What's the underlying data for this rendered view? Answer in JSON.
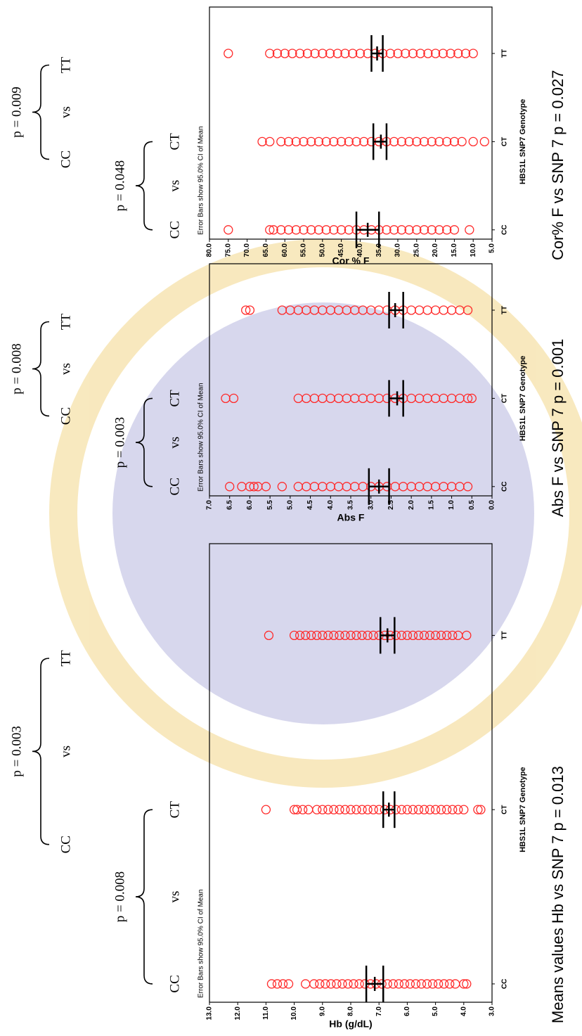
{
  "chart_data": [
    {
      "type": "scatter",
      "y_label": "Hb (g/dL)",
      "x_label": "HBS1L SNP7 Genotype",
      "subtitle": "Error Bars show 95.0% CI of Mean",
      "caption": "Means values  Hb vs SNP 7  p = 0.013",
      "color": "#ff2a2a",
      "categories": [
        "CC",
        "CT",
        "TT"
      ],
      "points": [
        [
          10.8,
          10.6,
          10.4,
          10.2,
          9.6,
          9.3,
          9.1,
          8.9,
          8.7,
          8.5,
          8.3,
          8.1,
          7.9,
          7.7,
          7.5,
          7.3,
          7.1,
          6.9,
          6.7,
          6.5,
          6.3,
          6.1,
          5.9,
          5.7,
          5.5,
          5.3,
          5.1,
          4.9,
          4.7,
          4.5,
          4.3,
          4.0,
          3.9
        ],
        [
          11.0,
          10.0,
          9.9,
          9.7,
          9.5,
          9.2,
          9.0,
          8.8,
          8.6,
          8.4,
          8.2,
          8.0,
          7.8,
          7.6,
          7.4,
          7.2,
          7.0,
          6.8,
          6.6,
          6.4,
          6.2,
          6.0,
          5.8,
          5.6,
          5.4,
          5.2,
          5.0,
          4.8,
          4.6,
          4.4,
          4.2,
          4.0,
          3.5,
          3.4
        ],
        [
          10.9,
          10.0,
          9.8,
          9.6,
          9.4,
          9.2,
          9.0,
          8.8,
          8.6,
          8.4,
          8.2,
          8.0,
          7.8,
          7.6,
          7.4,
          7.2,
          7.0,
          6.8,
          6.6,
          6.4,
          6.2,
          6.0,
          5.8,
          5.6,
          5.4,
          5.2,
          5.0,
          4.8,
          4.6,
          4.4,
          4.2,
          3.9
        ]
      ],
      "means": [
        7.15,
        6.65,
        6.7
      ],
      "ci_low": [
        6.85,
        6.45,
        6.45
      ],
      "ci_high": [
        7.45,
        6.85,
        6.95
      ],
      "ylim": [
        3.0,
        13.0
      ],
      "yticks": [
        {
          "value": 3,
          "label": "3.0"
        },
        {
          "value": 4,
          "label": "4.0"
        },
        {
          "value": 5,
          "label": "5.0"
        },
        {
          "value": 6,
          "label": "6.0"
        },
        {
          "value": 7,
          "label": "7.0"
        },
        {
          "value": 8,
          "label": "8.0"
        },
        {
          "value": 9,
          "label": "9.0"
        },
        {
          "value": 10,
          "label": "10.0"
        },
        {
          "value": 11,
          "label": "11.0"
        },
        {
          "value": 12,
          "label": "12.0"
        },
        {
          "value": 13,
          "label": "13.0"
        }
      ],
      "comparisons": [
        {
          "labels": [
            "CC",
            "vs",
            "CT"
          ],
          "p": "p = 0.008"
        },
        {
          "labels": [
            "CC",
            "vs",
            "TT"
          ],
          "p": "p = 0.003"
        }
      ]
    },
    {
      "type": "scatter",
      "y_label": "Abs F",
      "x_label": "HBS1L SNP7 Genotype",
      "subtitle": "Error Bars show 95.0% CI of Mean",
      "caption": "Abs F vs SNP 7  p = 0.001",
      "color": "#ff2a2a",
      "categories": [
        "CC",
        "CT",
        "TT"
      ],
      "points": [
        [
          6.5,
          6.2,
          6.0,
          5.9,
          5.8,
          5.6,
          5.2,
          4.8,
          4.6,
          4.4,
          4.2,
          4.0,
          3.8,
          3.6,
          3.4,
          3.2,
          3.0,
          2.8,
          2.6,
          2.4,
          2.2,
          2.0,
          1.8,
          1.6,
          1.4,
          1.2,
          1.0,
          0.8,
          0.6
        ],
        [
          6.6,
          6.4,
          4.8,
          4.6,
          4.4,
          4.2,
          4.0,
          3.8,
          3.6,
          3.4,
          3.2,
          3.0,
          2.8,
          2.6,
          2.4,
          2.2,
          2.0,
          1.8,
          1.6,
          1.4,
          1.2,
          1.0,
          0.8,
          0.6,
          0.5
        ],
        [
          6.1,
          6.0,
          5.2,
          5.0,
          4.8,
          4.6,
          4.4,
          4.2,
          4.0,
          3.8,
          3.6,
          3.4,
          3.2,
          3.0,
          2.8,
          2.6,
          2.4,
          2.2,
          2.0,
          1.8,
          1.6,
          1.4,
          1.2,
          1.0,
          0.8,
          0.6
        ]
      ],
      "means": [
        2.8,
        2.35,
        2.4
      ],
      "ci_low": [
        2.55,
        2.2,
        2.2
      ],
      "ci_high": [
        3.05,
        2.55,
        2.55
      ],
      "ylim": [
        0.0,
        7.0
      ],
      "yticks": [
        {
          "value": 0,
          "label": "0.0"
        },
        {
          "value": 0.5,
          "label": "0.5"
        },
        {
          "value": 1,
          "label": "1.0"
        },
        {
          "value": 1.5,
          "label": "1.5"
        },
        {
          "value": 2,
          "label": "2.0"
        },
        {
          "value": 2.5,
          "label": "2.5"
        },
        {
          "value": 3,
          "label": "3.0"
        },
        {
          "value": 3.5,
          "label": "3.5"
        },
        {
          "value": 4,
          "label": "4.0"
        },
        {
          "value": 4.5,
          "label": "4.5"
        },
        {
          "value": 5,
          "label": "5.0"
        },
        {
          "value": 5.5,
          "label": "5.5"
        },
        {
          "value": 6,
          "label": "6.0"
        },
        {
          "value": 6.5,
          "label": "6.5"
        },
        {
          "value": 7,
          "label": "7.0"
        }
      ],
      "comparisons": [
        {
          "labels": [
            "CC",
            "vs",
            "CT"
          ],
          "p": "p = 0.003"
        },
        {
          "labels": [
            "CC",
            "vs",
            "TT"
          ],
          "p": "p = 0.008"
        }
      ]
    },
    {
      "type": "scatter",
      "y_label": "Cor % F",
      "x_label": "HBS1L SNP7 Genotype",
      "subtitle": "Error Bars show 95.0% CI of Mean",
      "caption": "Cor% F vs SNP 7  p = 0.027",
      "color": "#ff2a2a",
      "categories": [
        "CC",
        "CT",
        "TT"
      ],
      "points": [
        [
          75,
          64,
          63,
          61,
          59,
          57,
          55,
          53,
          51,
          49,
          47,
          45,
          43,
          41,
          39,
          37,
          35,
          33,
          31,
          29,
          27,
          25,
          23,
          21,
          19,
          17,
          15,
          11
        ],
        [
          66,
          64,
          61,
          59,
          57,
          55,
          53,
          51,
          49,
          47,
          45,
          43,
          41,
          39,
          37,
          35,
          33,
          31,
          29,
          27,
          25,
          23,
          21,
          19,
          17,
          15,
          13,
          10,
          7
        ],
        [
          75,
          64,
          62,
          60,
          58,
          56,
          54,
          52,
          50,
          48,
          46,
          44,
          42,
          40,
          38,
          36,
          34,
          32,
          30,
          28,
          26,
          24,
          22,
          20,
          18,
          16,
          14,
          12,
          10
        ]
      ],
      "means": [
        38,
        34.5,
        35.5
      ],
      "ci_low": [
        35,
        33,
        34
      ],
      "ci_high": [
        41,
        36.5,
        37
      ],
      "ylim": [
        5.0,
        80.0
      ],
      "yticks": [
        {
          "value": 5,
          "label": "5.0"
        },
        {
          "value": 10,
          "label": "10.0"
        },
        {
          "value": 15,
          "label": "15.0"
        },
        {
          "value": 20,
          "label": "20.0"
        },
        {
          "value": 25,
          "label": "25.0"
        },
        {
          "value": 30,
          "label": "30.0"
        },
        {
          "value": 35,
          "label": "35.0"
        },
        {
          "value": 40,
          "label": "40.0"
        },
        {
          "value": 45,
          "label": "45.0"
        },
        {
          "value": 50,
          "label": "50.0"
        },
        {
          "value": 55,
          "label": "55.0"
        },
        {
          "value": 60,
          "label": "60.0"
        },
        {
          "value": 65,
          "label": "65.0"
        },
        {
          "value": 70,
          "label": "70.0"
        },
        {
          "value": 75,
          "label": "75.0"
        },
        {
          "value": 80,
          "label": "80.0"
        }
      ],
      "comparisons": [
        {
          "labels": [
            "CC",
            "vs",
            "CT"
          ],
          "p": "p = 0.048"
        },
        {
          "labels": [
            "CC",
            "vs",
            "TT"
          ],
          "p": "p = 0.009"
        }
      ]
    }
  ]
}
